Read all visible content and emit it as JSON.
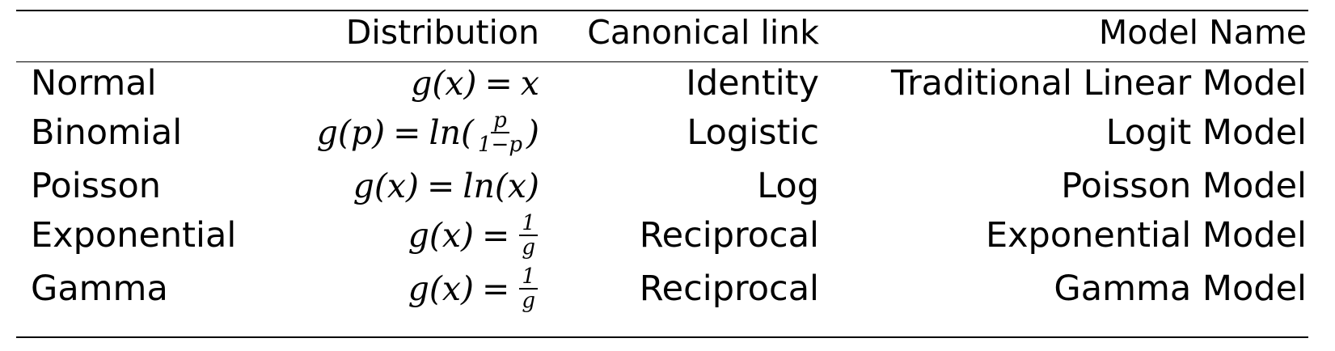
{
  "table": {
    "headers": {
      "distribution": "Distribution",
      "canonical_link": "Canonical link",
      "model_name": "Model Name"
    },
    "rows": [
      {
        "name": "Normal",
        "formula": {
          "lhs": "g(x)",
          "eq": "=",
          "rhs": "x"
        },
        "link": "Identity",
        "model": "Traditional Linear Model"
      },
      {
        "name": "Binomial",
        "formula": {
          "lhs": "g(p)",
          "eq": "=",
          "pre": "ln(",
          "num": "p",
          "den": "1−p",
          "post": ")"
        },
        "link": "Logistic",
        "model": "Logit Model"
      },
      {
        "name": "Poisson",
        "formula": {
          "lhs": "g(x)",
          "eq": "=",
          "rhs": "ln(x)"
        },
        "link": "Log",
        "model": "Poisson Model"
      },
      {
        "name": "Exponential",
        "formula": {
          "lhs": "g(x)",
          "eq": "=",
          "num": "1",
          "den": "g"
        },
        "link": "Reciprocal",
        "model": "Exponential Model"
      },
      {
        "name": "Gamma",
        "formula": {
          "lhs": "g(x)",
          "eq": "=",
          "num": "1",
          "den": "g"
        },
        "link": "Reciprocal",
        "model": "Gamma Model"
      }
    ]
  }
}
